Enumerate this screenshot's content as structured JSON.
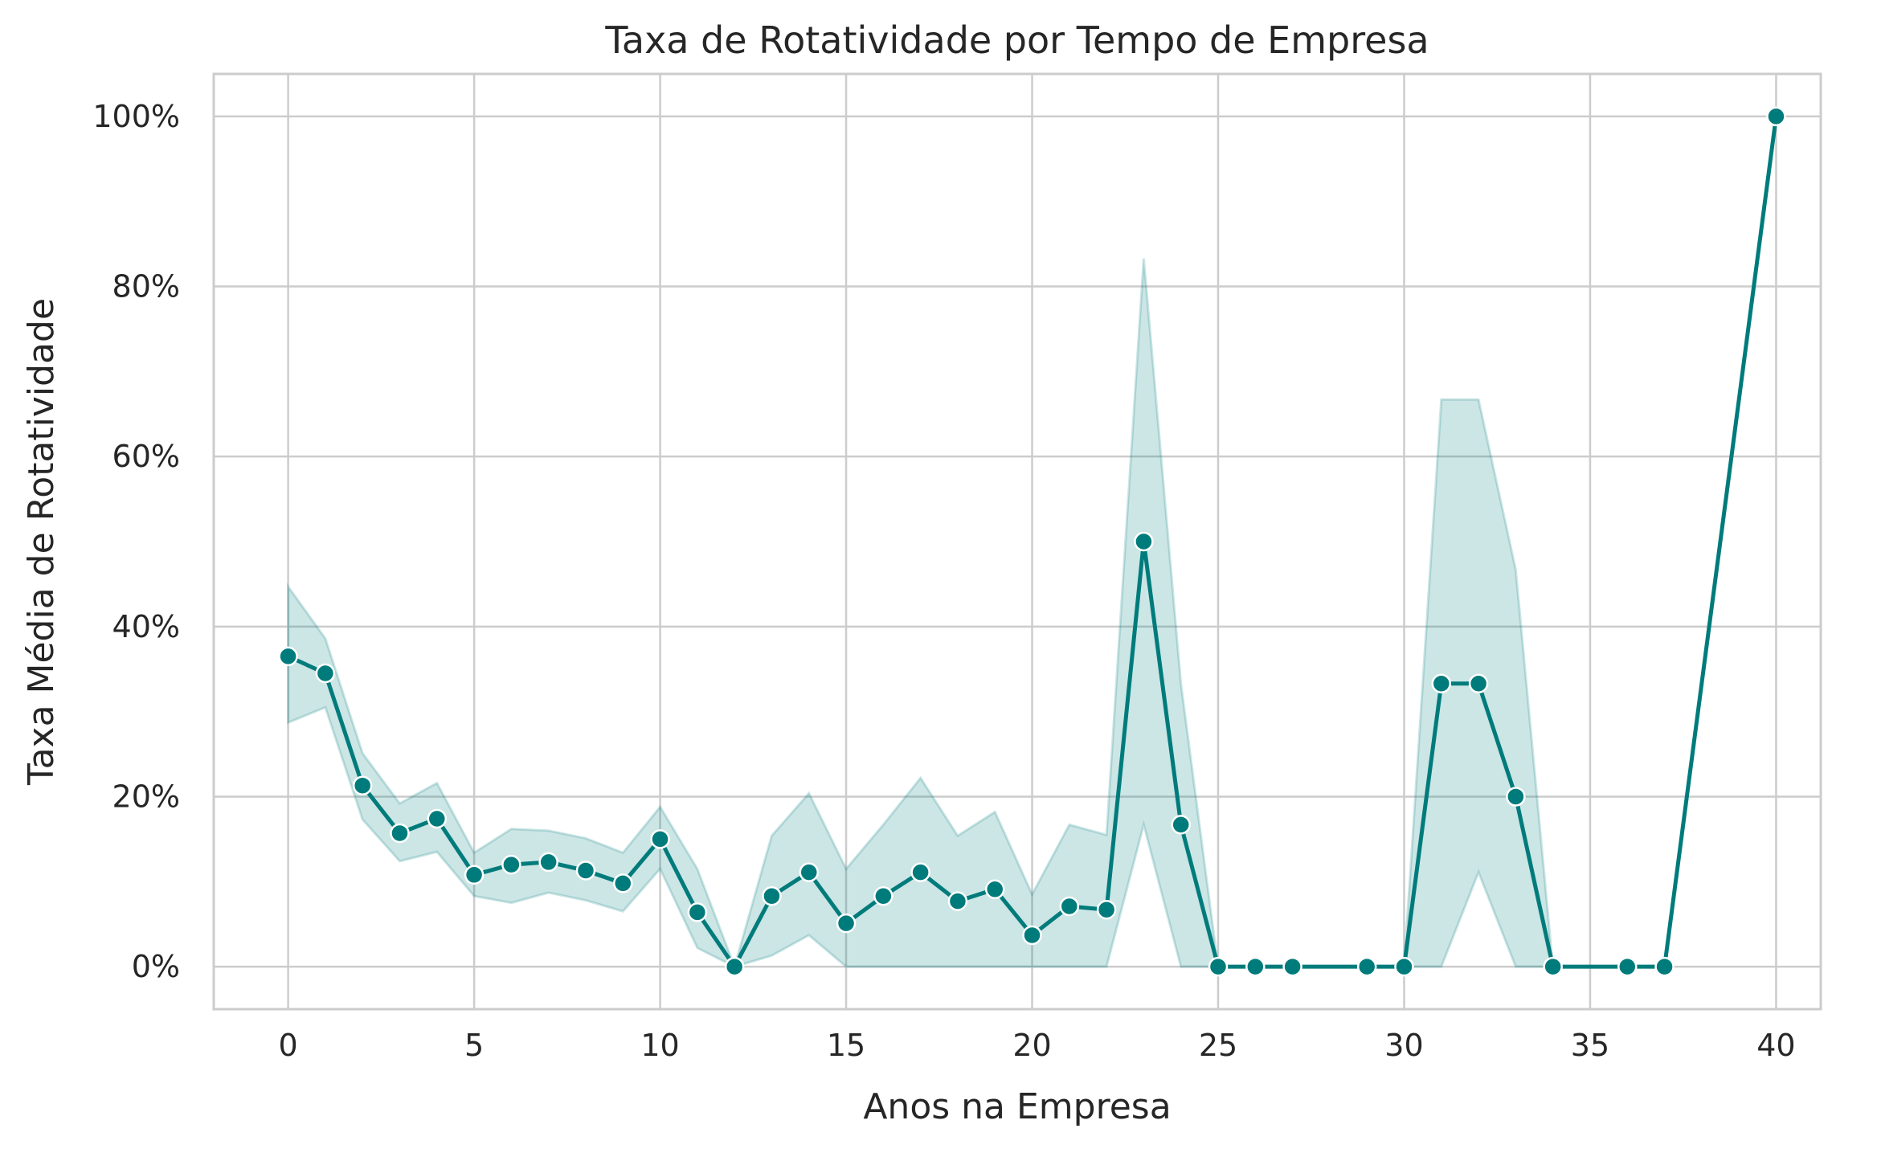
{
  "chart_data": {
    "type": "line",
    "title": "Taxa de Rotatividade por Tempo de Empresa",
    "xlabel": "Anos na Empresa",
    "ylabel": "Taxa Média de Rotatividade",
    "xlim": [
      -2,
      41.2
    ],
    "ylim": [
      -0.05,
      1.05
    ],
    "xticks": [
      0,
      5,
      10,
      15,
      20,
      25,
      30,
      35,
      40
    ],
    "xtick_labels": [
      "0",
      "5",
      "10",
      "15",
      "20",
      "25",
      "30",
      "35",
      "40"
    ],
    "yticks": [
      0,
      0.2,
      0.4,
      0.6,
      0.8,
      1.0
    ],
    "ytick_labels": [
      "0%",
      "20%",
      "40%",
      "60%",
      "80%",
      "100%"
    ],
    "grid": true,
    "colors": {
      "line": "#007b7b",
      "band": "#007b7b",
      "marker_edge": "#ffffff",
      "grid": "#cccccc",
      "text": "#262626"
    },
    "series": [
      {
        "x": [
          0,
          1,
          2,
          3,
          4,
          5,
          6,
          7,
          8,
          9,
          10,
          11,
          12,
          13,
          14,
          15,
          16,
          17,
          18,
          19,
          20,
          21,
          22,
          23,
          24,
          25,
          26,
          27,
          29,
          30,
          31,
          32,
          33,
          34,
          36,
          37,
          40
        ],
        "y": [
          0.365,
          0.345,
          0.213,
          0.157,
          0.174,
          0.108,
          0.12,
          0.123,
          0.113,
          0.098,
          0.15,
          0.064,
          0.0,
          0.083,
          0.111,
          0.051,
          0.083,
          0.111,
          0.077,
          0.091,
          0.037,
          0.071,
          0.067,
          0.5,
          0.167,
          0.0,
          0.0,
          0.0,
          0.0,
          0.0,
          0.333,
          0.333,
          0.2,
          0.0,
          0.0,
          0.0,
          1.0
        ],
        "lower": [
          0.287,
          0.305,
          0.173,
          0.124,
          0.135,
          0.083,
          0.075,
          0.087,
          0.078,
          0.065,
          0.115,
          0.022,
          0.0,
          0.013,
          0.037,
          0.0,
          0.0,
          0.0,
          0.0,
          0.0,
          0.0,
          0.0,
          0.0,
          0.167,
          0.0,
          0.0,
          0.0,
          0.0,
          0.0,
          0.0,
          0.0,
          0.111,
          0.0,
          0.0,
          0.0,
          0.0,
          1.0
        ],
        "upper": [
          0.447,
          0.386,
          0.251,
          0.192,
          0.216,
          0.134,
          0.162,
          0.16,
          0.151,
          0.134,
          0.188,
          0.115,
          0.0,
          0.154,
          0.204,
          0.115,
          0.167,
          0.222,
          0.154,
          0.182,
          0.085,
          0.167,
          0.155,
          0.833,
          0.333,
          0.0,
          0.0,
          0.0,
          0.0,
          0.0,
          0.667,
          0.667,
          0.467,
          0.0,
          0.0,
          0.0,
          1.0
        ]
      }
    ]
  }
}
